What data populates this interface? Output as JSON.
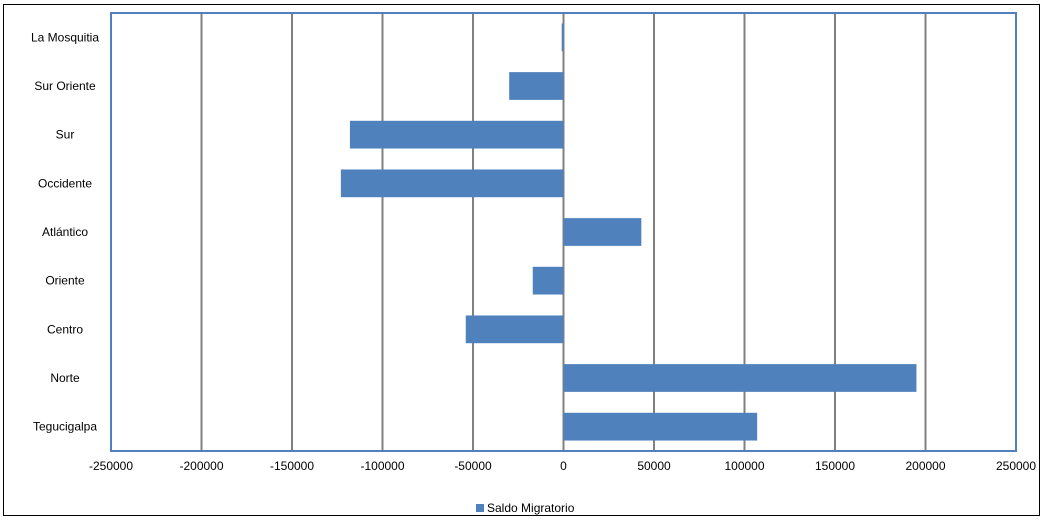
{
  "chart_data": {
    "type": "bar",
    "orientation": "horizontal",
    "categories": [
      "Tegucigalpa",
      "Norte",
      "Centro",
      "Oriente",
      "Atlántico",
      "Occidente",
      "Sur",
      "Sur Oriente",
      "La Mosquitia"
    ],
    "series": [
      {
        "name": "Saldo Migratorio",
        "values": [
          107000,
          195000,
          -54000,
          -17000,
          43000,
          -123000,
          -118000,
          -30000,
          -1000
        ]
      }
    ],
    "xlim": [
      -250000,
      250000
    ],
    "xticks": [
      -250000,
      -200000,
      -150000,
      -100000,
      -50000,
      0,
      50000,
      100000,
      150000,
      200000,
      250000
    ],
    "tick_labels": [
      "-250000",
      "-200000",
      "-150000",
      "-100000",
      "-50000",
      "0",
      "50000",
      "100000",
      "150000",
      "200000",
      "250000"
    ],
    "grid": "vertical",
    "legend_position": "bottom",
    "colors": {
      "bar": "#4f81bd",
      "plot_border": "#4f81bd",
      "grid": "#808080"
    }
  }
}
